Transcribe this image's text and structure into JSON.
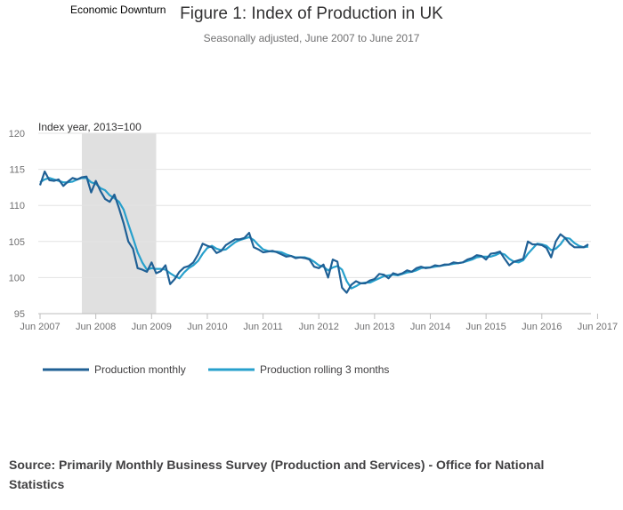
{
  "annotation": "Economic Downturn",
  "chart_data": {
    "type": "line",
    "title": "Figure 1: Index of Production in UK",
    "subtitle": "Seasonally adjusted, June 2007 to June 2017",
    "ylabel": "Index year, 2013=100",
    "ylim": [
      95,
      120
    ],
    "yticks": [
      95,
      100,
      105,
      110,
      115,
      120
    ],
    "x_start": "Jun 2007",
    "x_ticks": [
      "Jun 2007",
      "Jun 2008",
      "Jun 2009",
      "Jun 2010",
      "Jun 2011",
      "Jun 2012",
      "Jun 2013",
      "Jun 2014",
      "Jun 2015",
      "Jun 2016",
      "Jun 2017"
    ],
    "shaded_region": {
      "label": "Economic Downturn",
      "from": "Mar 2008",
      "to": "Jul 2009",
      "color": "#e0e0e0"
    },
    "grid": "horizontal",
    "legend_position": "bottom-left",
    "series": [
      {
        "name": "Production monthly",
        "color": "#206095",
        "values": [
          112.8,
          114.7,
          113.5,
          113.4,
          113.6,
          112.7,
          113.3,
          113.8,
          113.6,
          113.9,
          114.0,
          111.8,
          113.4,
          112.0,
          110.9,
          110.5,
          111.5,
          109.6,
          107.5,
          105.0,
          104.0,
          101.3,
          101.1,
          100.8,
          102.1,
          100.6,
          100.9,
          101.7,
          99.1,
          99.8,
          100.8,
          101.4,
          101.6,
          102.1,
          103.2,
          104.7,
          104.4,
          104.2,
          103.4,
          103.7,
          104.5,
          104.9,
          105.3,
          105.3,
          105.5,
          106.2,
          104.2,
          103.9,
          103.5,
          103.6,
          103.7,
          103.5,
          103.2,
          102.9,
          103.0,
          102.7,
          102.8,
          102.7,
          102.5,
          101.5,
          101.3,
          101.8,
          100.0,
          102.5,
          102.2,
          98.6,
          97.9,
          99.0,
          99.5,
          99.2,
          99.2,
          99.6,
          99.8,
          100.5,
          100.4,
          99.9,
          100.6,
          100.4,
          100.6,
          101.0,
          100.8,
          101.3,
          101.5,
          101.3,
          101.4,
          101.7,
          101.6,
          101.8,
          101.8,
          102.1,
          102.0,
          102.1,
          102.5,
          102.7,
          103.1,
          103.0,
          102.5,
          103.3,
          103.4,
          103.6,
          102.6,
          101.7,
          102.2,
          102.4,
          102.6,
          105.0,
          104.6,
          104.6,
          104.5,
          104.1,
          102.8,
          105.0,
          106.0,
          105.5,
          104.7,
          104.2,
          104.2,
          104.2,
          104.6
        ]
      },
      {
        "name": "Production rolling 3 months",
        "color": "#27a0cc",
        "values": [
          113.2,
          113.6,
          113.8,
          113.6,
          113.4,
          113.2,
          113.2,
          113.3,
          113.6,
          113.8,
          113.8,
          113.2,
          113.0,
          112.4,
          112.1,
          111.4,
          111.0,
          110.5,
          109.4,
          107.4,
          105.5,
          103.5,
          102.1,
          101.1,
          101.3,
          101.2,
          101.2,
          101.1,
          100.6,
          100.2,
          99.9,
          100.7,
          101.3,
          101.7,
          102.3,
          103.3,
          104.1,
          104.4,
          104.0,
          103.8,
          103.9,
          104.4,
          104.9,
          105.2,
          105.4,
          105.6,
          105.2,
          104.5,
          103.9,
          103.7,
          103.6,
          103.6,
          103.5,
          103.2,
          103.0,
          102.8,
          102.8,
          102.8,
          102.6,
          102.2,
          101.7,
          101.5,
          101.0,
          101.4,
          101.6,
          101.1,
          99.5,
          98.5,
          98.8,
          99.2,
          99.3,
          99.3,
          99.6,
          99.9,
          100.2,
          100.3,
          100.4,
          100.3,
          100.5,
          100.7,
          100.8,
          101.0,
          101.3,
          101.4,
          101.4,
          101.5,
          101.6,
          101.7,
          101.8,
          101.9,
          102.0,
          102.1,
          102.3,
          102.5,
          102.8,
          102.9,
          102.9,
          102.9,
          103.1,
          103.4,
          103.2,
          102.6,
          102.2,
          102.1,
          102.4,
          103.3,
          104.0,
          104.7,
          104.6,
          104.4,
          103.8,
          104.0,
          104.6,
          105.5,
          105.4,
          104.8,
          104.4,
          104.2,
          104.3
        ]
      }
    ]
  },
  "source": "Source: Primarily Monthly Business Survey (Production and Services) - Office for National Statistics"
}
